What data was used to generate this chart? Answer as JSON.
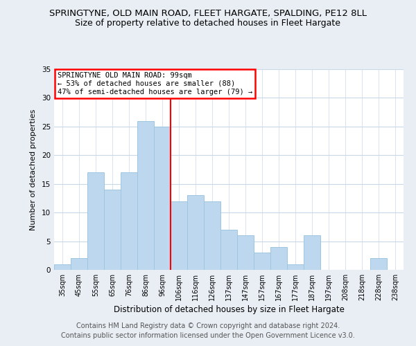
{
  "title": "SPRINGTYNE, OLD MAIN ROAD, FLEET HARGATE, SPALDING, PE12 8LL",
  "subtitle": "Size of property relative to detached houses in Fleet Hargate",
  "xlabel": "Distribution of detached houses by size in Fleet Hargate",
  "ylabel": "Number of detached properties",
  "bar_labels": [
    "35sqm",
    "45sqm",
    "55sqm",
    "65sqm",
    "76sqm",
    "86sqm",
    "96sqm",
    "106sqm",
    "116sqm",
    "126sqm",
    "137sqm",
    "147sqm",
    "157sqm",
    "167sqm",
    "177sqm",
    "187sqm",
    "197sqm",
    "208sqm",
    "218sqm",
    "228sqm",
    "238sqm"
  ],
  "bar_values": [
    1,
    2,
    17,
    14,
    17,
    26,
    25,
    12,
    13,
    12,
    7,
    6,
    3,
    4,
    1,
    6,
    0,
    0,
    0,
    2,
    0
  ],
  "bar_color": "#bdd7ee",
  "bar_edge_color": "#9ec6e0",
  "vline_x": 6.5,
  "vline_color": "red",
  "ylim": [
    0,
    35
  ],
  "yticks": [
    0,
    5,
    10,
    15,
    20,
    25,
    30,
    35
  ],
  "annotation_title": "SPRINGTYNE OLD MAIN ROAD: 99sqm",
  "annotation_line1": "← 53% of detached houses are smaller (88)",
  "annotation_line2": "47% of semi-detached houses are larger (79) →",
  "annotation_box_color": "white",
  "annotation_box_edge": "red",
  "footer1": "Contains HM Land Registry data © Crown copyright and database right 2024.",
  "footer2": "Contains public sector information licensed under the Open Government Licence v3.0.",
  "background_color": "#e8eef4",
  "plot_background": "white",
  "grid_color": "#c8d8e8",
  "title_fontsize": 9.5,
  "subtitle_fontsize": 9.0,
  "footer_fontsize": 7.0
}
